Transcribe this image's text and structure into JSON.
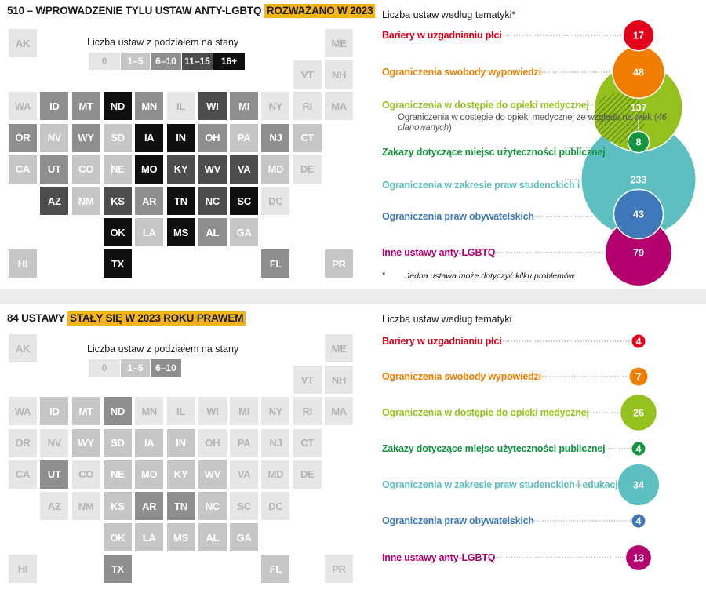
{
  "colors": {
    "bin0": "#e6e6e6",
    "bin1": "#c6c6c6",
    "bin2": "#8e8e8e",
    "bin3": "#4d4d4d",
    "bin4": "#0f0f0f",
    "highlight": "#f5b41a",
    "topic_colors": [
      "#e3001b",
      "#ef7d00",
      "#95c11f",
      "#13963f",
      "#5dbfbf",
      "#3f78b9",
      "#b4006e"
    ]
  },
  "chart_data": [
    {
      "type": "map",
      "title_prefix": "510 – WPROWADZENIE TYLU USTAW ANTY-LGBTQ",
      "title_highlight": "ROZWAŻANO W 2023",
      "legend_title": "Liczba ustaw z podziałem na stany",
      "legend_bins": [
        "0",
        "1–5",
        "6–10",
        "11–15",
        "16+"
      ],
      "states": [
        {
          "code": "AK",
          "bin": 0,
          "col": 0,
          "row": 0
        },
        {
          "code": "ME",
          "bin": 0,
          "col": 10,
          "row": 0
        },
        {
          "code": "VT",
          "bin": 0,
          "col": 9,
          "row": 1
        },
        {
          "code": "NH",
          "bin": 0,
          "col": 10,
          "row": 1
        },
        {
          "code": "WA",
          "bin": 0,
          "col": 0,
          "row": 2
        },
        {
          "code": "ID",
          "bin": 2,
          "col": 1,
          "row": 2
        },
        {
          "code": "MT",
          "bin": 2,
          "col": 2,
          "row": 2
        },
        {
          "code": "ND",
          "bin": 4,
          "col": 3,
          "row": 2
        },
        {
          "code": "MN",
          "bin": 2,
          "col": 4,
          "row": 2
        },
        {
          "code": "IL",
          "bin": 0,
          "col": 5,
          "row": 2
        },
        {
          "code": "WI",
          "bin": 3,
          "col": 6,
          "row": 2
        },
        {
          "code": "MI",
          "bin": 2,
          "col": 7,
          "row": 2
        },
        {
          "code": "NY",
          "bin": 0,
          "col": 8,
          "row": 2
        },
        {
          "code": "RI",
          "bin": 0,
          "col": 9,
          "row": 2
        },
        {
          "code": "MA",
          "bin": 0,
          "col": 10,
          "row": 2
        },
        {
          "code": "OR",
          "bin": 2,
          "col": 0,
          "row": 3
        },
        {
          "code": "NV",
          "bin": 1,
          "col": 1,
          "row": 3
        },
        {
          "code": "WY",
          "bin": 2,
          "col": 2,
          "row": 3
        },
        {
          "code": "SD",
          "bin": 1,
          "col": 3,
          "row": 3
        },
        {
          "code": "IA",
          "bin": 4,
          "col": 4,
          "row": 3
        },
        {
          "code": "IN",
          "bin": 4,
          "col": 5,
          "row": 3
        },
        {
          "code": "OH",
          "bin": 2,
          "col": 6,
          "row": 3
        },
        {
          "code": "PA",
          "bin": 1,
          "col": 7,
          "row": 3
        },
        {
          "code": "NJ",
          "bin": 2,
          "col": 8,
          "row": 3
        },
        {
          "code": "CT",
          "bin": 1,
          "col": 9,
          "row": 3
        },
        {
          "code": "CA",
          "bin": 1,
          "col": 0,
          "row": 4
        },
        {
          "code": "UT",
          "bin": 2,
          "col": 1,
          "row": 4
        },
        {
          "code": "CO",
          "bin": 1,
          "col": 2,
          "row": 4
        },
        {
          "code": "NE",
          "bin": 1,
          "col": 3,
          "row": 4
        },
        {
          "code": "MO",
          "bin": 4,
          "col": 4,
          "row": 4
        },
        {
          "code": "KY",
          "bin": 3,
          "col": 5,
          "row": 4
        },
        {
          "code": "WV",
          "bin": 3,
          "col": 6,
          "row": 4
        },
        {
          "code": "VA",
          "bin": 3,
          "col": 7,
          "row": 4
        },
        {
          "code": "MD",
          "bin": 1,
          "col": 8,
          "row": 4
        },
        {
          "code": "DE",
          "bin": 0,
          "col": 9,
          "row": 4
        },
        {
          "code": "AZ",
          "bin": 3,
          "col": 1,
          "row": 5
        },
        {
          "code": "NM",
          "bin": 1,
          "col": 2,
          "row": 5
        },
        {
          "code": "KS",
          "bin": 3,
          "col": 3,
          "row": 5
        },
        {
          "code": "AR",
          "bin": 2,
          "col": 4,
          "row": 5
        },
        {
          "code": "TN",
          "bin": 4,
          "col": 5,
          "row": 5
        },
        {
          "code": "NC",
          "bin": 3,
          "col": 6,
          "row": 5
        },
        {
          "code": "SC",
          "bin": 4,
          "col": 7,
          "row": 5
        },
        {
          "code": "DC",
          "bin": 0,
          "col": 8,
          "row": 5
        },
        {
          "code": "OK",
          "bin": 4,
          "col": 3,
          "row": 6
        },
        {
          "code": "LA",
          "bin": 1,
          "col": 4,
          "row": 6
        },
        {
          "code": "MS",
          "bin": 4,
          "col": 5,
          "row": 6
        },
        {
          "code": "AL",
          "bin": 2,
          "col": 6,
          "row": 6
        },
        {
          "code": "GA",
          "bin": 1,
          "col": 7,
          "row": 6
        },
        {
          "code": "HI",
          "bin": 1,
          "col": 0,
          "row": 7
        },
        {
          "code": "TX",
          "bin": 4,
          "col": 3,
          "row": 7
        },
        {
          "code": "FL",
          "bin": 2,
          "col": 8,
          "row": 7
        },
        {
          "code": "PR",
          "bin": 1,
          "col": 10,
          "row": 7
        }
      ]
    },
    {
      "type": "bubble",
      "title": "Liczba ustaw według tematyki*",
      "labels": [
        "Bariery w uzgadnianiu płci",
        "Ograniczenia swobody wypowiedzi",
        "Ograniczenia w dostępie do opieki medycznej",
        "Zakazy dotyczące miejsc użyteczności publicznej",
        "Ograniczenia w zakresie praw studenckich i edukacji",
        "Ograniczenia praw obywatelskich",
        "Inne ustawy anty-LGBTQ"
      ],
      "values": [
        17,
        48,
        137,
        8,
        233,
        43,
        79
      ],
      "sub_label": "Ograniczenia w dostępie do opieki medycznej ze względu na wiek (",
      "sub_value": "46 planowanych",
      "sub_close": ")",
      "footnote_mark": "*",
      "footnote": "Jedna ustawa może dotyczyć kilku problemów"
    },
    {
      "type": "map",
      "title_prefix": "84 USTAWY",
      "title_highlight": "STAŁY SIĘ W 2023 ROKU PRAWEM",
      "legend_title": "Liczba ustaw z podziałem na stany",
      "legend_bins": [
        "0",
        "1–5",
        "6–10"
      ],
      "states": [
        {
          "code": "AK",
          "bin": 0,
          "col": 0,
          "row": 0
        },
        {
          "code": "ME",
          "bin": 0,
          "col": 10,
          "row": 0
        },
        {
          "code": "VT",
          "bin": 0,
          "col": 9,
          "row": 1
        },
        {
          "code": "NH",
          "bin": 0,
          "col": 10,
          "row": 1
        },
        {
          "code": "WA",
          "bin": 0,
          "col": 0,
          "row": 2
        },
        {
          "code": "ID",
          "bin": 1,
          "col": 1,
          "row": 2
        },
        {
          "code": "MT",
          "bin": 1,
          "col": 2,
          "row": 2
        },
        {
          "code": "ND",
          "bin": 2,
          "col": 3,
          "row": 2
        },
        {
          "code": "MN",
          "bin": 0,
          "col": 4,
          "row": 2
        },
        {
          "code": "IL",
          "bin": 0,
          "col": 5,
          "row": 2
        },
        {
          "code": "WI",
          "bin": 0,
          "col": 6,
          "row": 2
        },
        {
          "code": "MI",
          "bin": 0,
          "col": 7,
          "row": 2
        },
        {
          "code": "NY",
          "bin": 0,
          "col": 8,
          "row": 2
        },
        {
          "code": "RI",
          "bin": 0,
          "col": 9,
          "row": 2
        },
        {
          "code": "MA",
          "bin": 0,
          "col": 10,
          "row": 2
        },
        {
          "code": "OR",
          "bin": 0,
          "col": 0,
          "row": 3
        },
        {
          "code": "NV",
          "bin": 0,
          "col": 1,
          "row": 3
        },
        {
          "code": "WY",
          "bin": 1,
          "col": 2,
          "row": 3
        },
        {
          "code": "SD",
          "bin": 1,
          "col": 3,
          "row": 3
        },
        {
          "code": "IA",
          "bin": 1,
          "col": 4,
          "row": 3
        },
        {
          "code": "IN",
          "bin": 1,
          "col": 5,
          "row": 3
        },
        {
          "code": "OH",
          "bin": 0,
          "col": 6,
          "row": 3
        },
        {
          "code": "PA",
          "bin": 0,
          "col": 7,
          "row": 3
        },
        {
          "code": "NJ",
          "bin": 0,
          "col": 8,
          "row": 3
        },
        {
          "code": "CT",
          "bin": 0,
          "col": 9,
          "row": 3
        },
        {
          "code": "CA",
          "bin": 0,
          "col": 0,
          "row": 4
        },
        {
          "code": "UT",
          "bin": 2,
          "col": 1,
          "row": 4
        },
        {
          "code": "CO",
          "bin": 0,
          "col": 2,
          "row": 4
        },
        {
          "code": "NE",
          "bin": 1,
          "col": 3,
          "row": 4
        },
        {
          "code": "MO",
          "bin": 1,
          "col": 4,
          "row": 4
        },
        {
          "code": "KY",
          "bin": 1,
          "col": 5,
          "row": 4
        },
        {
          "code": "WV",
          "bin": 1,
          "col": 6,
          "row": 4
        },
        {
          "code": "VA",
          "bin": 0,
          "col": 7,
          "row": 4
        },
        {
          "code": "MD",
          "bin": 0,
          "col": 8,
          "row": 4
        },
        {
          "code": "DE",
          "bin": 0,
          "col": 9,
          "row": 4
        },
        {
          "code": "AZ",
          "bin": 0,
          "col": 1,
          "row": 5
        },
        {
          "code": "NM",
          "bin": 0,
          "col": 2,
          "row": 5
        },
        {
          "code": "KS",
          "bin": 1,
          "col": 3,
          "row": 5
        },
        {
          "code": "AR",
          "bin": 2,
          "col": 4,
          "row": 5
        },
        {
          "code": "TN",
          "bin": 2,
          "col": 5,
          "row": 5
        },
        {
          "code": "NC",
          "bin": 1,
          "col": 6,
          "row": 5
        },
        {
          "code": "SC",
          "bin": 0,
          "col": 7,
          "row": 5
        },
        {
          "code": "DC",
          "bin": 0,
          "col": 8,
          "row": 5
        },
        {
          "code": "OK",
          "bin": 1,
          "col": 3,
          "row": 6
        },
        {
          "code": "LA",
          "bin": 1,
          "col": 4,
          "row": 6
        },
        {
          "code": "MS",
          "bin": 1,
          "col": 5,
          "row": 6
        },
        {
          "code": "AL",
          "bin": 1,
          "col": 6,
          "row": 6
        },
        {
          "code": "GA",
          "bin": 1,
          "col": 7,
          "row": 6
        },
        {
          "code": "HI",
          "bin": 0,
          "col": 0,
          "row": 7
        },
        {
          "code": "TX",
          "bin": 2,
          "col": 3,
          "row": 7
        },
        {
          "code": "FL",
          "bin": 1,
          "col": 8,
          "row": 7
        },
        {
          "code": "PR",
          "bin": 0,
          "col": 10,
          "row": 7
        }
      ]
    },
    {
      "type": "bubble",
      "title": "Liczba ustaw według tematyki",
      "labels": [
        "Bariery w uzgadnianiu płci",
        "Ograniczenia swobody wypowiedzi",
        "Ograniczenia w dostępie do opieki medycznej",
        "Zakazy dotyczące miejsc użyteczności publicznej",
        "Ograniczenia w zakresie praw studenckich i edukacji",
        "Ograniczenia praw obywatelskich",
        "Inne ustawy anty-LGBTQ"
      ],
      "values": [
        4,
        7,
        26,
        4,
        34,
        4,
        13
      ]
    }
  ]
}
